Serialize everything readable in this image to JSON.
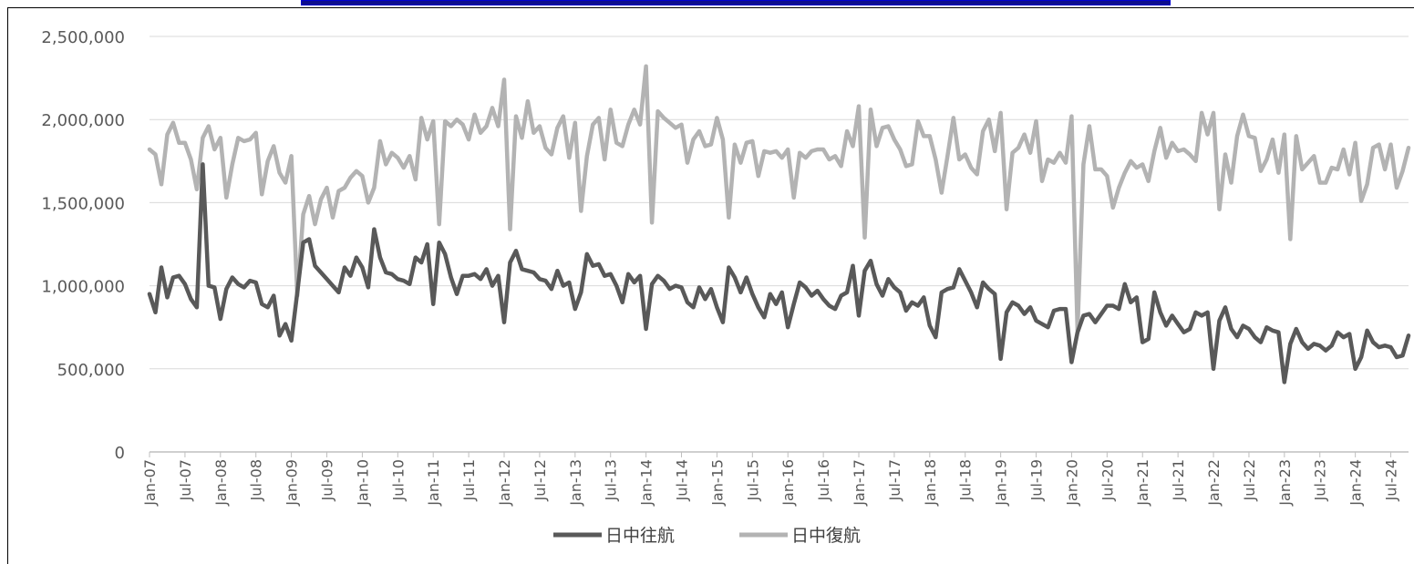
{
  "chart_data": {
    "type": "line",
    "x_tick_labels": [
      "Jan-07",
      "Jul-07",
      "Jan-08",
      "Jul-08",
      "Jan-09",
      "Jul-09",
      "Jan-10",
      "Jul-10",
      "Jan-11",
      "Jul-11",
      "Jan-12",
      "Jul-12",
      "Jan-13",
      "Jul-13",
      "Jan-14",
      "Jul-14",
      "Jan-15",
      "Jul-15",
      "Jan-16",
      "Jul-16",
      "Jan-17",
      "Jul-17",
      "Jan-18",
      "Jul-18",
      "Jan-19",
      "Jul-19",
      "Jan-20",
      "Jul-20",
      "Jan-21",
      "Jul-21",
      "Jan-22",
      "Jul-22",
      "Jan-23",
      "Jul-23",
      "Jan-24",
      "Jul-24"
    ],
    "y_tick_labels": [
      "0",
      "500,000",
      "1,000,000",
      "1,500,000",
      "2,000,000",
      "2,500,000"
    ],
    "ylim": [
      0,
      2500000
    ],
    "x_start": "Jan-07",
    "x_end": "Dec-24",
    "grid": "horizontal",
    "legend_position": "bottom",
    "series": [
      {
        "name": "日中往航",
        "color": "#595959",
        "values": [
          950000,
          840000,
          1110000,
          930000,
          1050000,
          1060000,
          1010000,
          920000,
          870000,
          1730000,
          1000000,
          990000,
          800000,
          980000,
          1050000,
          1010000,
          990000,
          1030000,
          1020000,
          890000,
          870000,
          940000,
          700000,
          770000,
          670000,
          960000,
          1260000,
          1280000,
          1120000,
          1080000,
          1040000,
          1000000,
          960000,
          1110000,
          1060000,
          1170000,
          1110000,
          990000,
          1340000,
          1170000,
          1080000,
          1070000,
          1040000,
          1030000,
          1010000,
          1170000,
          1140000,
          1250000,
          890000,
          1260000,
          1190000,
          1050000,
          950000,
          1060000,
          1060000,
          1070000,
          1040000,
          1100000,
          1000000,
          1060000,
          780000,
          1140000,
          1210000,
          1100000,
          1090000,
          1080000,
          1040000,
          1030000,
          980000,
          1090000,
          1000000,
          1020000,
          860000,
          960000,
          1190000,
          1120000,
          1130000,
          1060000,
          1070000,
          1000000,
          900000,
          1070000,
          1020000,
          1060000,
          740000,
          1010000,
          1060000,
          1030000,
          980000,
          1000000,
          990000,
          900000,
          870000,
          990000,
          920000,
          980000,
          870000,
          780000,
          1110000,
          1050000,
          960000,
          1050000,
          950000,
          870000,
          810000,
          950000,
          890000,
          960000,
          750000,
          890000,
          1020000,
          990000,
          940000,
          970000,
          920000,
          880000,
          860000,
          940000,
          960000,
          1120000,
          820000,
          1090000,
          1150000,
          1010000,
          940000,
          1040000,
          990000,
          960000,
          850000,
          900000,
          880000,
          930000,
          760000,
          690000,
          960000,
          980000,
          990000,
          1100000,
          1030000,
          960000,
          870000,
          1020000,
          980000,
          950000,
          560000,
          840000,
          900000,
          880000,
          830000,
          870000,
          790000,
          770000,
          750000,
          850000,
          860000,
          860000,
          540000,
          720000,
          820000,
          830000,
          780000,
          830000,
          880000,
          880000,
          860000,
          1010000,
          900000,
          930000,
          660000,
          680000,
          960000,
          840000,
          760000,
          820000,
          770000,
          720000,
          740000,
          840000,
          820000,
          840000,
          500000,
          790000,
          870000,
          740000,
          690000,
          760000,
          740000,
          690000,
          660000,
          750000,
          730000,
          720000,
          420000,
          650000,
          740000,
          660000,
          620000,
          650000,
          640000,
          610000,
          640000,
          720000,
          690000,
          710000,
          500000,
          570000,
          730000,
          660000,
          630000,
          640000,
          630000,
          570000,
          580000,
          700000
        ]
      },
      {
        "name": "日中復航",
        "color": "#b3b3b3",
        "values": [
          1820000,
          1790000,
          1610000,
          1910000,
          1980000,
          1860000,
          1860000,
          1760000,
          1580000,
          1890000,
          1960000,
          1820000,
          1890000,
          1530000,
          1730000,
          1890000,
          1870000,
          1880000,
          1920000,
          1550000,
          1750000,
          1840000,
          1680000,
          1620000,
          1780000,
          940000,
          1430000,
          1540000,
          1370000,
          1520000,
          1590000,
          1410000,
          1570000,
          1590000,
          1650000,
          1690000,
          1660000,
          1500000,
          1590000,
          1870000,
          1730000,
          1800000,
          1770000,
          1710000,
          1780000,
          1640000,
          2010000,
          1880000,
          1990000,
          1370000,
          1990000,
          1960000,
          2000000,
          1970000,
          1880000,
          2030000,
          1920000,
          1960000,
          2070000,
          1960000,
          2240000,
          1340000,
          2020000,
          1890000,
          2110000,
          1920000,
          1960000,
          1830000,
          1790000,
          1950000,
          2020000,
          1770000,
          1980000,
          1450000,
          1780000,
          1970000,
          2010000,
          1760000,
          2060000,
          1860000,
          1840000,
          1970000,
          2060000,
          1970000,
          2320000,
          1380000,
          2050000,
          2010000,
          1980000,
          1950000,
          1970000,
          1740000,
          1880000,
          1930000,
          1840000,
          1850000,
          2010000,
          1880000,
          1410000,
          1850000,
          1740000,
          1860000,
          1870000,
          1660000,
          1810000,
          1800000,
          1810000,
          1770000,
          1820000,
          1530000,
          1800000,
          1770000,
          1810000,
          1820000,
          1820000,
          1760000,
          1780000,
          1720000,
          1930000,
          1840000,
          2080000,
          1290000,
          2060000,
          1840000,
          1950000,
          1960000,
          1880000,
          1820000,
          1720000,
          1730000,
          1990000,
          1900000,
          1900000,
          1760000,
          1560000,
          1780000,
          2010000,
          1760000,
          1790000,
          1710000,
          1670000,
          1930000,
          2000000,
          1810000,
          2040000,
          1460000,
          1800000,
          1830000,
          1910000,
          1800000,
          1990000,
          1630000,
          1760000,
          1740000,
          1800000,
          1740000,
          2020000,
          730000,
          1730000,
          1960000,
          1700000,
          1700000,
          1660000,
          1470000,
          1590000,
          1680000,
          1750000,
          1710000,
          1730000,
          1630000,
          1810000,
          1950000,
          1770000,
          1860000,
          1810000,
          1820000,
          1790000,
          1750000,
          2040000,
          1910000,
          2040000,
          1460000,
          1790000,
          1620000,
          1900000,
          2030000,
          1900000,
          1890000,
          1690000,
          1760000,
          1880000,
          1680000,
          1910000,
          1280000,
          1900000,
          1700000,
          1740000,
          1780000,
          1620000,
          1620000,
          1710000,
          1700000,
          1820000,
          1670000,
          1860000,
          1510000,
          1610000,
          1830000,
          1850000,
          1700000,
          1850000,
          1590000,
          1690000,
          1830000
        ]
      }
    ]
  }
}
